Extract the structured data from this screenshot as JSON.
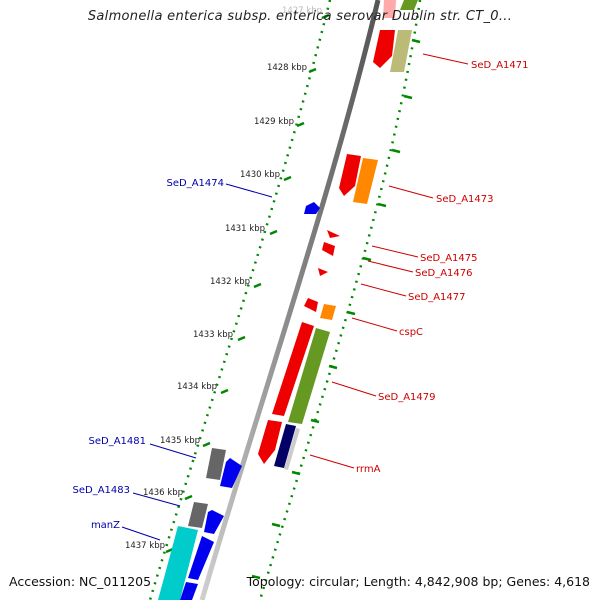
{
  "title": "Salmonella enterica subsp. enterica serovar Dublin str. CT_0...",
  "footer": {
    "accession": "Accession: NC_011205",
    "summary": "Topology: circular; Length: 4,842,908 bp; Genes: 4,618"
  },
  "ticks": [
    "1427 kbp",
    "1428 kbp",
    "1429 kbp",
    "1430 kbp",
    "1431 kbp",
    "1432 kbp",
    "1433 kbp",
    "1434 kbp",
    "1435 kbp",
    "1436 kbp",
    "1437 kbp"
  ],
  "labels_right": [
    "SeD_A1471",
    "SeD_A1473",
    "SeD_A1475",
    "SeD_A1476",
    "SeD_A1477",
    "cspC",
    "SeD_A1479",
    "rrmA"
  ],
  "labels_left": [
    "SeD_A1474",
    "SeD_A1481",
    "SeD_A1483",
    "manZ"
  ],
  "colors": {
    "red_gene": "#ee0000",
    "orange_gene": "#ff8800",
    "olive_gene": "#669922",
    "tan_gene": "#bbbb77",
    "navy_gene": "#000066",
    "blue_gene": "#0000ee",
    "gray_gene": "#666666",
    "cyan_gene": "#00cccc",
    "backbone": "#888888",
    "tick": "#008800",
    "label_red": "#cc0000",
    "label_blue": "#0000aa"
  }
}
